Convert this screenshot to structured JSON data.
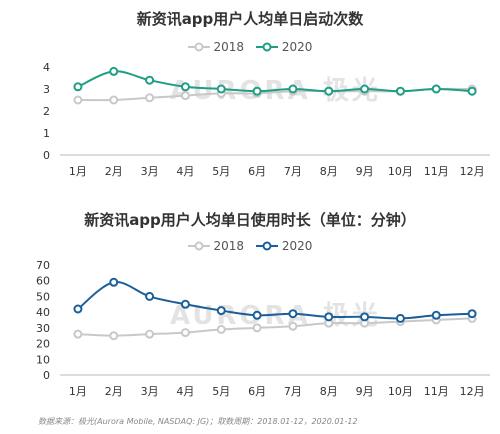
{
  "watermark": "AURORA 极光",
  "source": "数据来源：极光(Aurora Mobile, NASDAQ: JG)；取数周期：2018.01-12，2020.01-12",
  "colors": {
    "s2018": "#c8c8c8",
    "s2020_chart1": "#1e9e84",
    "s2020_chart2": "#1a5f9a",
    "axis": "#bbbbbb"
  },
  "chart_data": [
    {
      "type": "line",
      "title": "新资讯app用户人均单日启动次数",
      "categories": [
        "1月",
        "2月",
        "3月",
        "4月",
        "5月",
        "6月",
        "7月",
        "8月",
        "9月",
        "10月",
        "11月",
        "12月"
      ],
      "series": [
        {
          "name": "2018",
          "values": [
            2.5,
            2.5,
            2.6,
            2.7,
            2.8,
            2.8,
            2.9,
            2.9,
            2.9,
            2.9,
            3.0,
            3.0
          ]
        },
        {
          "name": "2020",
          "values": [
            3.1,
            3.8,
            3.4,
            3.1,
            3.0,
            2.9,
            3.0,
            2.9,
            3.0,
            2.9,
            3.0,
            2.9
          ]
        }
      ],
      "ylim": [
        0,
        4
      ],
      "yticks": [
        0,
        1,
        2,
        3,
        4
      ],
      "grid": false,
      "legend": "top-center"
    },
    {
      "type": "line",
      "title": "新资讯app用户人均单日使用时长（单位：分钟）",
      "categories": [
        "1月",
        "2月",
        "3月",
        "4月",
        "5月",
        "6月",
        "7月",
        "8月",
        "9月",
        "10月",
        "11月",
        "12月"
      ],
      "series": [
        {
          "name": "2018",
          "values": [
            26,
            25,
            26,
            27,
            29,
            30,
            31,
            33,
            33,
            34,
            35,
            36
          ]
        },
        {
          "name": "2020",
          "values": [
            42,
            59,
            50,
            45,
            41,
            38,
            39,
            37,
            37,
            36,
            38,
            39
          ]
        }
      ],
      "ylim": [
        0,
        70
      ],
      "yticks": [
        0,
        10,
        20,
        30,
        40,
        50,
        60,
        70
      ],
      "grid": false,
      "legend": "top-center"
    }
  ]
}
